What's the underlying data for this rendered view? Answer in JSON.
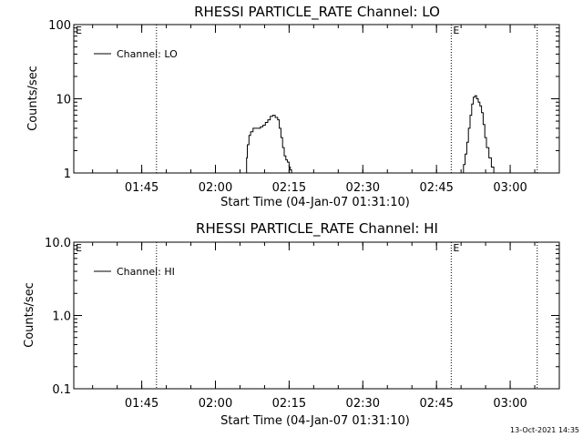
{
  "footer": {
    "timestamp": "13-Oct-2021 14:35"
  },
  "chart_data": [
    {
      "type": "line",
      "title": "RHESSI PARTICLE_RATE Channel: LO",
      "xlabel": "Start Time (04-Jan-07 01:31:10)",
      "ylabel": "Counts/sec",
      "yscale": "log",
      "ylim": [
        1,
        100
      ],
      "y_ticks": [
        1,
        10,
        100
      ],
      "y_tick_labels": [
        "1",
        "10",
        "100"
      ],
      "xlim": [
        "01:31:10",
        "03:10:00"
      ],
      "x_ticks": [
        "01:45",
        "02:00",
        "02:15",
        "02:30",
        "02:45",
        "03:00"
      ],
      "x_tick_labels": [
        "01:45",
        "02:00",
        "02:15",
        "02:30",
        "02:45",
        "03:00"
      ],
      "legend": {
        "entries": [
          "Channel: LO"
        ],
        "placement": "top-left"
      },
      "vertical_markers": [
        {
          "time": "01:48:00",
          "label": ""
        },
        {
          "time": "02:48:00",
          "label": "E"
        },
        {
          "time": "03:05:30",
          "label": ""
        }
      ],
      "corner_labels": [
        "E"
      ],
      "series": [
        {
          "name": "Channel: LO",
          "segments": [
            {
              "times": [
                "02:06:10",
                "02:06:20",
                "02:06:30",
                "02:06:50",
                "02:07:10",
                "02:07:40",
                "02:08:10",
                "02:08:40",
                "02:09:10",
                "02:09:40",
                "02:10:10",
                "02:10:40",
                "02:11:10",
                "02:11:40",
                "02:12:10",
                "02:12:40",
                "02:13:00",
                "02:13:20",
                "02:13:40",
                "02:14:00",
                "02:14:20",
                "02:14:40",
                "02:15:00",
                "02:15:15",
                "02:15:30"
              ],
              "values": [
                1.0,
                1.6,
                2.4,
                3.2,
                3.6,
                4.0,
                4.0,
                4.0,
                4.2,
                4.4,
                4.8,
                5.2,
                5.8,
                6.0,
                5.6,
                5.2,
                4.0,
                3.0,
                2.2,
                1.7,
                1.5,
                1.4,
                1.2,
                1.1,
                1.0
              ]
            },
            {
              "times": [
                "02:50:10",
                "02:50:30",
                "02:50:50",
                "02:51:10",
                "02:51:30",
                "02:51:50",
                "02:52:10",
                "02:52:30",
                "02:52:50",
                "02:53:10",
                "02:53:30",
                "02:53:50",
                "02:54:10",
                "02:54:30",
                "02:54:50",
                "02:55:10",
                "02:55:40",
                "02:56:10",
                "02:56:40"
              ],
              "values": [
                1.0,
                1.3,
                1.8,
                2.6,
                4.0,
                6.0,
                8.5,
                10.5,
                11.0,
                10.0,
                9.0,
                8.0,
                6.5,
                4.5,
                3.0,
                2.2,
                1.6,
                1.2,
                1.0
              ]
            }
          ]
        }
      ]
    },
    {
      "type": "line",
      "title": "RHESSI PARTICLE_RATE Channel: HI",
      "xlabel": "Start Time (04-Jan-07 01:31:10)",
      "ylabel": "Counts/sec",
      "yscale": "log",
      "ylim": [
        0.1,
        10
      ],
      "y_ticks": [
        0.1,
        1,
        10
      ],
      "y_tick_labels": [
        "0.1",
        "1.0",
        "10.0"
      ],
      "xlim": [
        "01:31:10",
        "03:10:00"
      ],
      "x_ticks": [
        "01:45",
        "02:00",
        "02:15",
        "02:30",
        "02:45",
        "03:00"
      ],
      "x_tick_labels": [
        "01:45",
        "02:00",
        "02:15",
        "02:30",
        "02:45",
        "03:00"
      ],
      "legend": {
        "entries": [
          "Channel: HI"
        ],
        "placement": "top-left"
      },
      "vertical_markers": [
        {
          "time": "01:48:00",
          "label": ""
        },
        {
          "time": "02:48:00",
          "label": "E"
        },
        {
          "time": "03:05:30",
          "label": ""
        }
      ],
      "corner_labels": [
        "E"
      ],
      "series": [
        {
          "name": "Channel: HI",
          "segments": []
        }
      ]
    }
  ]
}
